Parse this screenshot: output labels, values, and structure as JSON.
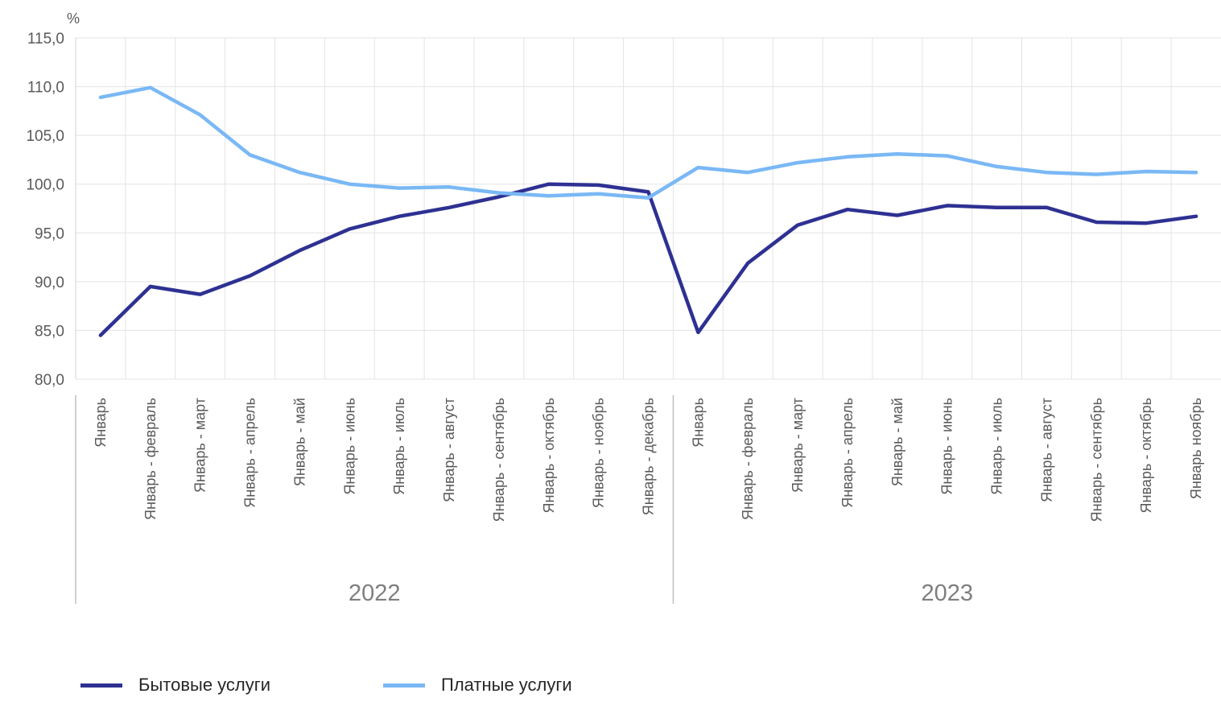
{
  "chart_data": {
    "type": "line",
    "unit_label": "%",
    "ylim": [
      80,
      115
    ],
    "y_ticks": [
      "80,0",
      "85,0",
      "90,0",
      "95,0",
      "100,0",
      "105,0",
      "110,0",
      "115,0"
    ],
    "grid": true,
    "categories": [
      "Январь",
      "Январь - февраль",
      "Январь - март",
      "Январь - апрель",
      "Январь - май",
      "Январь - июнь",
      "Январь - июль",
      "Январь - август",
      "Январь - сентябрь",
      "Январь - октябрь",
      "Январь - ноябрь",
      "Январь - декабрь",
      "Январь",
      "Январь - февраль",
      "Январь - март",
      "Январь - апрель",
      "Январь - май",
      "Январь - июнь",
      "Январь - июль",
      "Январь - август",
      "Январь - сентябрь",
      "Январь - октябрь",
      "Январь ноябрь"
    ],
    "groups": [
      {
        "label": "2022",
        "count": 12
      },
      {
        "label": "2023",
        "count": 11
      }
    ],
    "legend_position": "bottom-left",
    "series": [
      {
        "name": "Бытовые услуги",
        "color": "#2e3192",
        "values": [
          84.5,
          89.5,
          88.7,
          90.6,
          93.2,
          95.4,
          96.7,
          97.6,
          98.7,
          100.0,
          99.9,
          99.2,
          84.8,
          91.9,
          95.8,
          97.4,
          96.8,
          97.8,
          97.6,
          97.6,
          96.1,
          96.0,
          96.7
        ]
      },
      {
        "name": "Платные услуги",
        "color": "#7ab8f5",
        "values": [
          108.9,
          109.9,
          107.1,
          103.0,
          101.2,
          100.0,
          99.6,
          99.7,
          99.1,
          98.8,
          99.0,
          98.6,
          101.7,
          101.2,
          102.2,
          102.8,
          103.1,
          102.9,
          101.8,
          101.2,
          101.0,
          101.3,
          101.2
        ]
      }
    ]
  }
}
